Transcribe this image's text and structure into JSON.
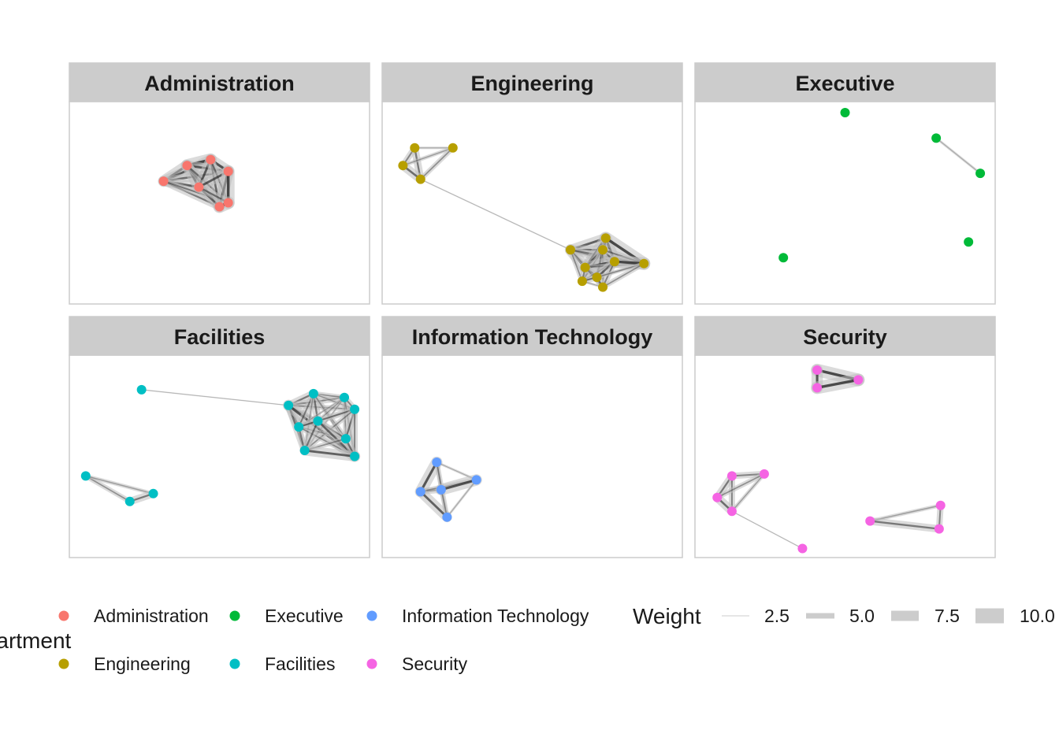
{
  "palette": {
    "Administration": "#F8766D",
    "Engineering": "#B79F00",
    "Executive": "#00BA38",
    "Facilities": "#00BFC4",
    "Information Technology": "#619CFF",
    "Security": "#F564E3"
  },
  "panels": [
    {
      "title": "Administration",
      "nodes": [
        [
          0.31,
          0.39
        ],
        [
          0.39,
          0.31
        ],
        [
          0.47,
          0.28
        ],
        [
          0.53,
          0.34
        ],
        [
          0.43,
          0.42
        ],
        [
          0.5,
          0.52
        ],
        [
          0.53,
          0.5
        ]
      ],
      "edges": [
        [
          0,
          1,
          9
        ],
        [
          0,
          2,
          8
        ],
        [
          0,
          3,
          7
        ],
        [
          0,
          4,
          8
        ],
        [
          0,
          5,
          6
        ],
        [
          0,
          6,
          5
        ],
        [
          1,
          2,
          10
        ],
        [
          1,
          3,
          8
        ],
        [
          1,
          4,
          9
        ],
        [
          1,
          5,
          7
        ],
        [
          1,
          6,
          6
        ],
        [
          2,
          3,
          9
        ],
        [
          2,
          4,
          8
        ],
        [
          2,
          5,
          7
        ],
        [
          2,
          6,
          6
        ],
        [
          3,
          4,
          8
        ],
        [
          3,
          5,
          9
        ],
        [
          3,
          6,
          10
        ],
        [
          4,
          5,
          7
        ],
        [
          4,
          6,
          6
        ],
        [
          5,
          6,
          10
        ]
      ]
    },
    {
      "title": "Engineering",
      "nodes": [
        [
          0.1,
          0.22
        ],
        [
          0.23,
          0.22
        ],
        [
          0.06,
          0.31
        ],
        [
          0.12,
          0.38
        ],
        [
          0.63,
          0.74
        ],
        [
          0.75,
          0.68
        ],
        [
          0.74,
          0.74
        ],
        [
          0.68,
          0.83
        ],
        [
          0.78,
          0.8
        ],
        [
          0.88,
          0.81
        ],
        [
          0.67,
          0.9
        ],
        [
          0.72,
          0.88
        ],
        [
          0.74,
          0.93
        ]
      ],
      "edges": [
        [
          0,
          1,
          2
        ],
        [
          0,
          2,
          5
        ],
        [
          0,
          3,
          6
        ],
        [
          1,
          2,
          3
        ],
        [
          1,
          3,
          4
        ],
        [
          2,
          3,
          7
        ],
        [
          3,
          4,
          1
        ],
        [
          4,
          5,
          8
        ],
        [
          4,
          6,
          7
        ],
        [
          4,
          7,
          9
        ],
        [
          4,
          8,
          6
        ],
        [
          4,
          9,
          5
        ],
        [
          4,
          10,
          4
        ],
        [
          4,
          11,
          3
        ],
        [
          4,
          12,
          2
        ],
        [
          5,
          6,
          7
        ],
        [
          5,
          7,
          8
        ],
        [
          5,
          8,
          9
        ],
        [
          5,
          9,
          10
        ],
        [
          5,
          10,
          3
        ],
        [
          5,
          11,
          4
        ],
        [
          5,
          12,
          2
        ],
        [
          6,
          7,
          8
        ],
        [
          6,
          8,
          6
        ],
        [
          6,
          9,
          5
        ],
        [
          6,
          10,
          4
        ],
        [
          6,
          11,
          8
        ],
        [
          6,
          12,
          3
        ],
        [
          7,
          8,
          9
        ],
        [
          7,
          9,
          4
        ],
        [
          7,
          10,
          5
        ],
        [
          7,
          11,
          6
        ],
        [
          7,
          12,
          3
        ],
        [
          8,
          9,
          10
        ],
        [
          8,
          10,
          3
        ],
        [
          8,
          11,
          7
        ],
        [
          8,
          12,
          5
        ],
        [
          9,
          10,
          2
        ],
        [
          9,
          11,
          3
        ],
        [
          9,
          12,
          4
        ],
        [
          10,
          11,
          5
        ],
        [
          10,
          12,
          2
        ],
        [
          11,
          12,
          6
        ]
      ]
    },
    {
      "title": "Executive",
      "nodes": [
        [
          0.5,
          0.04
        ],
        [
          0.81,
          0.17
        ],
        [
          0.96,
          0.35
        ],
        [
          0.92,
          0.7
        ],
        [
          0.29,
          0.78
        ]
      ],
      "edges": [
        [
          1,
          2,
          2
        ]
      ]
    },
    {
      "title": "Facilities",
      "nodes": [
        [
          0.235,
          0.16
        ],
        [
          0.735,
          0.24
        ],
        [
          0.82,
          0.18
        ],
        [
          0.925,
          0.2
        ],
        [
          0.96,
          0.26
        ],
        [
          0.77,
          0.35
        ],
        [
          0.835,
          0.32
        ],
        [
          0.93,
          0.41
        ],
        [
          0.79,
          0.47
        ],
        [
          0.96,
          0.5
        ],
        [
          0.045,
          0.6
        ],
        [
          0.195,
          0.73
        ],
        [
          0.275,
          0.69
        ]
      ],
      "edges": [
        [
          0,
          1,
          1
        ],
        [
          1,
          2,
          6
        ],
        [
          1,
          3,
          5
        ],
        [
          1,
          4,
          4
        ],
        [
          1,
          5,
          7
        ],
        [
          1,
          6,
          3
        ],
        [
          1,
          7,
          2
        ],
        [
          1,
          8,
          6
        ],
        [
          1,
          9,
          9
        ],
        [
          2,
          3,
          4
        ],
        [
          2,
          4,
          3
        ],
        [
          2,
          5,
          5
        ],
        [
          2,
          6,
          6
        ],
        [
          2,
          7,
          4
        ],
        [
          2,
          8,
          3
        ],
        [
          2,
          9,
          2
        ],
        [
          3,
          4,
          5
        ],
        [
          3,
          5,
          2
        ],
        [
          3,
          6,
          3
        ],
        [
          3,
          7,
          4
        ],
        [
          3,
          8,
          2
        ],
        [
          3,
          9,
          3
        ],
        [
          4,
          5,
          3
        ],
        [
          4,
          6,
          5
        ],
        [
          4,
          7,
          6
        ],
        [
          4,
          8,
          4
        ],
        [
          4,
          9,
          5
        ],
        [
          5,
          6,
          6
        ],
        [
          5,
          7,
          3
        ],
        [
          5,
          8,
          5
        ],
        [
          5,
          9,
          4
        ],
        [
          6,
          7,
          5
        ],
        [
          6,
          8,
          6
        ],
        [
          6,
          9,
          7
        ],
        [
          7,
          8,
          4
        ],
        [
          7,
          9,
          6
        ],
        [
          8,
          9,
          8
        ],
        [
          10,
          11,
          4
        ],
        [
          10,
          12,
          3
        ],
        [
          11,
          12,
          6
        ]
      ]
    },
    {
      "title": "Information Technology",
      "nodes": [
        [
          0.175,
          0.53
        ],
        [
          0.12,
          0.68
        ],
        [
          0.19,
          0.67
        ],
        [
          0.31,
          0.62
        ],
        [
          0.21,
          0.81
        ]
      ],
      "edges": [
        [
          0,
          1,
          9
        ],
        [
          0,
          2,
          3
        ],
        [
          0,
          3,
          2
        ],
        [
          0,
          4,
          4
        ],
        [
          1,
          2,
          5
        ],
        [
          1,
          3,
          4
        ],
        [
          1,
          4,
          8
        ],
        [
          2,
          3,
          9
        ],
        [
          2,
          4,
          3
        ],
        [
          3,
          4,
          2
        ]
      ]
    },
    {
      "title": "Security",
      "nodes": [
        [
          0.405,
          0.06
        ],
        [
          0.545,
          0.11
        ],
        [
          0.405,
          0.15
        ],
        [
          0.115,
          0.6
        ],
        [
          0.225,
          0.59
        ],
        [
          0.065,
          0.71
        ],
        [
          0.115,
          0.78
        ],
        [
          0.355,
          0.97
        ],
        [
          0.585,
          0.83
        ],
        [
          0.825,
          0.75
        ],
        [
          0.82,
          0.87
        ]
      ],
      "edges": [
        [
          0,
          1,
          10
        ],
        [
          0,
          2,
          9
        ],
        [
          1,
          2,
          10
        ],
        [
          3,
          4,
          5
        ],
        [
          3,
          5,
          6
        ],
        [
          3,
          6,
          5
        ],
        [
          4,
          5,
          4
        ],
        [
          4,
          6,
          3
        ],
        [
          5,
          6,
          7
        ],
        [
          6,
          7,
          1
        ],
        [
          8,
          9,
          3
        ],
        [
          8,
          10,
          6
        ],
        [
          9,
          10,
          5
        ]
      ]
    }
  ],
  "legend": {
    "color_title": "Department",
    "color_items": [
      {
        "label": "Administration",
        "color": "#F8766D"
      },
      {
        "label": "Engineering",
        "color": "#B79F00"
      },
      {
        "label": "Executive",
        "color": "#00BA38"
      },
      {
        "label": "Facilities",
        "color": "#00BFC4"
      },
      {
        "label": "Information Technology",
        "color": "#619CFF"
      },
      {
        "label": "Security",
        "color": "#F564E3"
      }
    ],
    "weight_title": "Weight",
    "weight_items": [
      {
        "label": "2.5",
        "value": 2.5
      },
      {
        "label": "5.0",
        "value": 5.0
      },
      {
        "label": "7.5",
        "value": 7.5
      },
      {
        "label": "10.0",
        "value": 10.0
      }
    ]
  }
}
